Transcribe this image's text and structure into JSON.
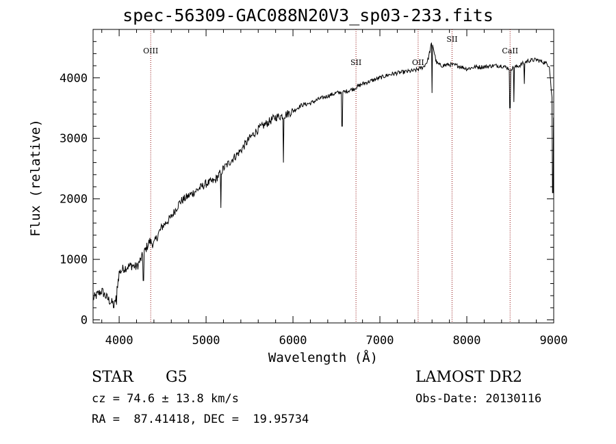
{
  "title": "spec-56309-GAC088N20V3_sp03-233.fits",
  "footer": {
    "object_class": "STAR",
    "subclass": "G5",
    "survey": "LAMOST DR2",
    "redshift": "cz = 74.6 ± 13.8 km/s",
    "obs_date": "Obs-Date: 20130116",
    "coords": "RA =  87.41418, DEC =  19.95734"
  },
  "chart_data": {
    "type": "line",
    "title": "spec-56309-GAC088N20V3_sp03-233.fits",
    "xlabel": "Wavelength (Å)",
    "ylabel": "Flux (relative)",
    "xlim": [
      3700,
      9000
    ],
    "ylim": [
      -50,
      4800
    ],
    "xticks": [
      4000,
      5000,
      6000,
      7000,
      8000,
      9000
    ],
    "yticks": [
      0,
      1000,
      2000,
      3000,
      4000
    ],
    "grid": false,
    "line_color": "#000000",
    "marker_color": "#8b0000",
    "lines": [
      {
        "label": "OIII",
        "x": 4363
      },
      {
        "label": "SII",
        "x": 6725
      },
      {
        "label": "OII",
        "x": 7440
      },
      {
        "label": "SII",
        "x": 7830
      },
      {
        "label": "CaII",
        "x": 8498
      }
    ],
    "x": [
      3700,
      3750,
      3800,
      3850,
      3900,
      3950,
      4000,
      4050,
      4100,
      4150,
      4200,
      4250,
      4300,
      4350,
      4400,
      4450,
      4500,
      4600,
      4700,
      4800,
      4900,
      5000,
      5100,
      5200,
      5300,
      5400,
      5500,
      5600,
      5700,
      5800,
      5900,
      6000,
      6100,
      6200,
      6300,
      6400,
      6500,
      6600,
      6700,
      6800,
      6900,
      7000,
      7100,
      7200,
      7300,
      7400,
      7500,
      7550,
      7600,
      7650,
      7700,
      7800,
      7900,
      8000,
      8100,
      8200,
      8300,
      8400,
      8500,
      8600,
      8700,
      8800,
      8900,
      8950,
      9000
    ],
    "y": [
      350,
      420,
      480,
      380,
      300,
      250,
      780,
      850,
      880,
      900,
      870,
      1000,
      1150,
      1300,
      1250,
      1420,
      1550,
      1700,
      1950,
      2050,
      2150,
      2250,
      2300,
      2500,
      2650,
      2800,
      3000,
      3150,
      3250,
      3350,
      3380,
      3450,
      3550,
      3580,
      3650,
      3700,
      3750,
      3770,
      3820,
      3900,
      3950,
      4000,
      4050,
      4080,
      4100,
      4120,
      4180,
      4280,
      4600,
      4250,
      4200,
      4220,
      4200,
      4150,
      4180,
      4180,
      4200,
      4200,
      4150,
      4200,
      4280,
      4300,
      4250,
      4200,
      3300
    ],
    "dips": [
      {
        "x": 3935,
        "y": 200
      },
      {
        "x": 3970,
        "y": 250
      },
      {
        "x": 4280,
        "y": 650
      },
      {
        "x": 5170,
        "y": 1850
      },
      {
        "x": 5890,
        "y": 2600
      },
      {
        "x": 6563,
        "y": 3200
      },
      {
        "x": 7600,
        "y": 3750
      },
      {
        "x": 8498,
        "y": 3500
      },
      {
        "x": 8542,
        "y": 3600
      },
      {
        "x": 8662,
        "y": 3900
      },
      {
        "x": 8990,
        "y": 2100
      }
    ]
  }
}
